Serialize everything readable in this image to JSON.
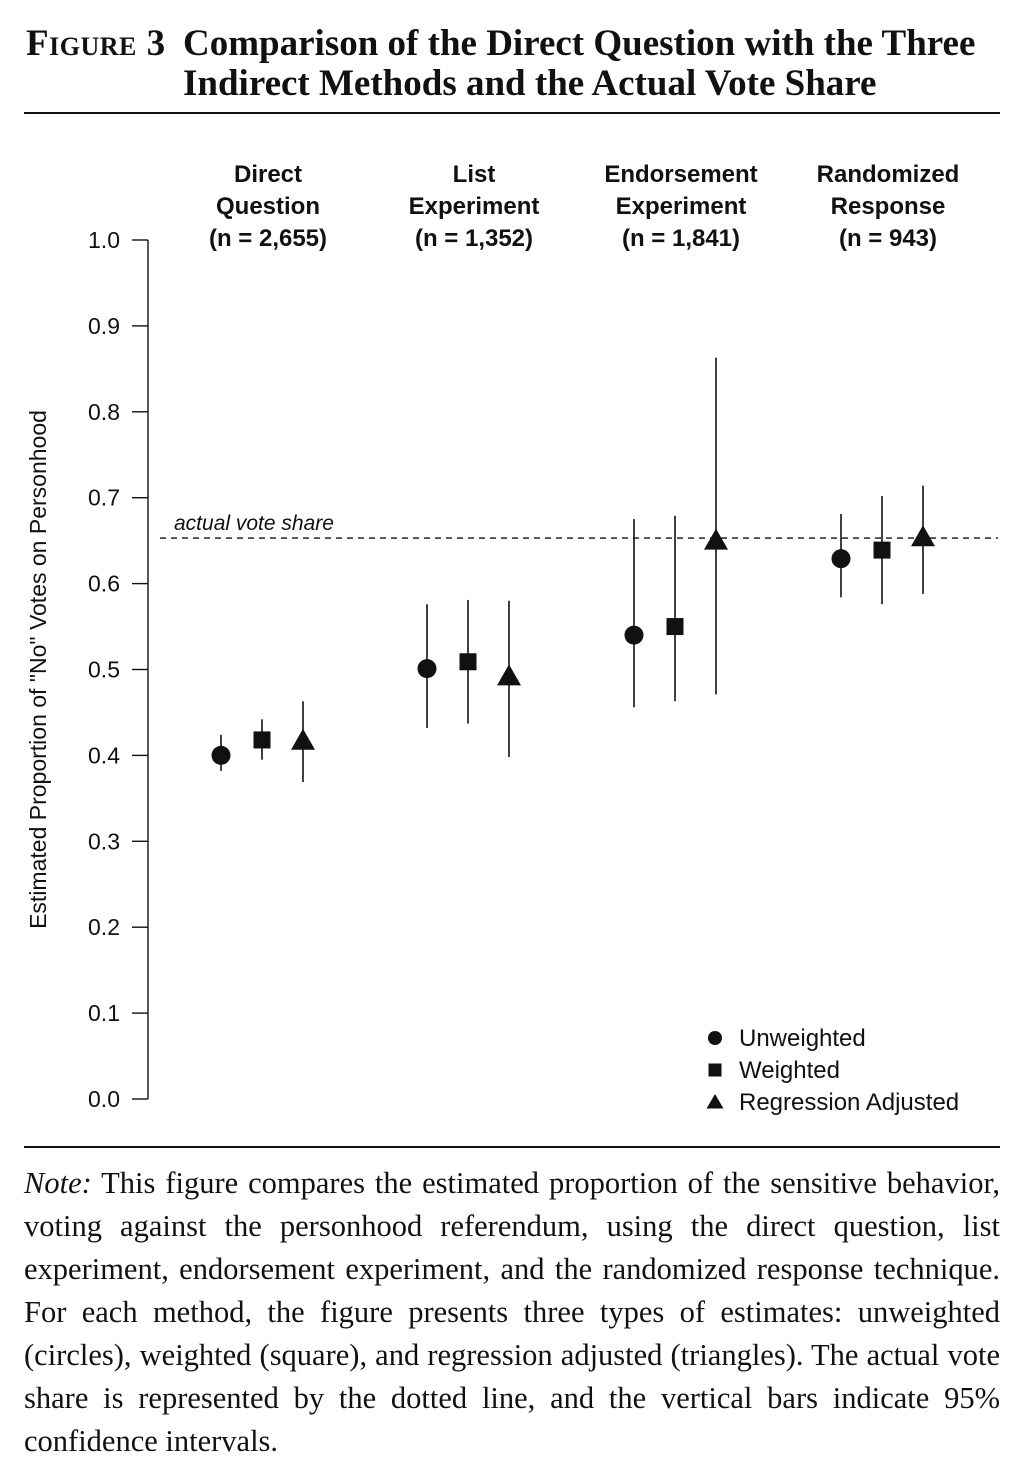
{
  "figure": {
    "label": "Figure 3",
    "title": "Comparison of the Direct Question with the Three Indirect Methods and the Actual Vote Share"
  },
  "chart_data": {
    "type": "scatter",
    "ylabel": "Estimated Proportion of \"No\" Votes on Personhood",
    "xlabel": "",
    "ylim": [
      0.0,
      1.0
    ],
    "yticks": [
      "0.0",
      "0.1",
      "0.2",
      "0.3",
      "0.4",
      "0.5",
      "0.6",
      "0.7",
      "0.8",
      "0.9",
      "1.0"
    ],
    "grid": false,
    "legend_position": "bottom-right",
    "reference_line": {
      "label": "actual vote share",
      "value": 0.653,
      "style": "dashed"
    },
    "groups": [
      {
        "line1": "Direct",
        "line2": "Question",
        "n_label": "(n = 2,655)"
      },
      {
        "line1": "List",
        "line2": "Experiment",
        "n_label": "(n = 1,352)"
      },
      {
        "line1": "Endorsement",
        "line2": "Experiment",
        "n_label": "(n = 1,841)"
      },
      {
        "line1": "Randomized",
        "line2": "Response",
        "n_label": "(n = 943)"
      }
    ],
    "series": [
      {
        "name": "Unweighted",
        "marker": "circle",
        "values": [
          0.4,
          0.501,
          0.54,
          0.629
        ],
        "ci_low": [
          0.382,
          0.432,
          0.456,
          0.584
        ],
        "ci_high": [
          0.424,
          0.576,
          0.675,
          0.681
        ]
      },
      {
        "name": "Weighted",
        "marker": "square",
        "values": [
          0.418,
          0.509,
          0.55,
          0.639
        ],
        "ci_low": [
          0.395,
          0.437,
          0.463,
          0.576
        ],
        "ci_high": [
          0.442,
          0.581,
          0.679,
          0.702
        ]
      },
      {
        "name": "Regression Adjusted",
        "marker": "triangle",
        "values": [
          0.417,
          0.492,
          0.65,
          0.654
        ],
        "ci_low": [
          0.369,
          0.398,
          0.471,
          0.588
        ],
        "ci_high": [
          0.463,
          0.58,
          0.863,
          0.714
        ]
      }
    ]
  },
  "note": {
    "label": "Note:",
    "text": "This figure compares the estimated proportion of the sensitive behavior, voting against the personhood referendum, using the direct question, list experiment, endorsement experiment, and the randomized response technique. For each method, the figure presents three types of estimates: unweighted (circles), weighted (square), and regression adjusted (triangles). The actual vote share is represented by the dotted line, and the vertical bars indicate 95% confidence intervals."
  }
}
